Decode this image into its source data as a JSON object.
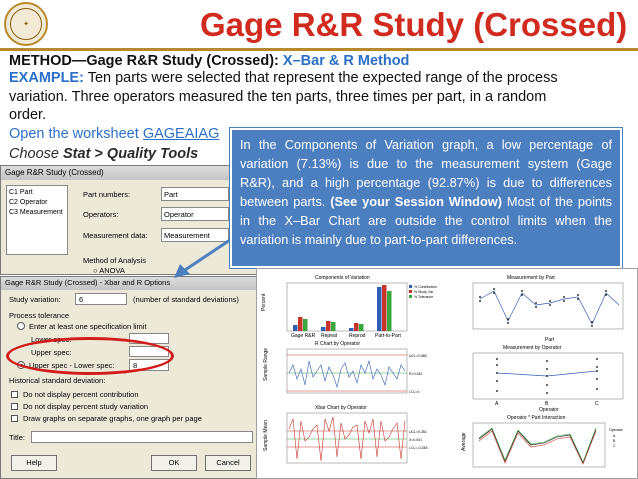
{
  "slide": {
    "title": "Gage R&R Study (Crossed)",
    "method_prefix": "METHOD—Gage R&R Study (Crossed): ",
    "method_value": "X–Bar & R Method",
    "example_label": "EXAMPLE:",
    "example_line1": " Ten parts were selected that represent the expected range of the process",
    "example_line2": "variation. Three operators measured the ten parts, three times per part, in a random",
    "example_line3": "order.",
    "open_prefix": "Open the worksheet ",
    "worksheet": "GAGEAIAG",
    "choose_prefix": "Choose ",
    "choose_path": "Stat > Quality Tools"
  },
  "callout": {
    "text1": "In the Components of Variation graph, a low percentage of variation (7.13%) is due to the measurement system (Gage R&R), and a high percentage (92.87%) is due to differences between parts. ",
    "bold": "(See your Session Window)",
    "text2": " Most of the points in the X–Bar Chart are outside the control limits when the variation is mainly due to part-to-part differences."
  },
  "dialog_main": {
    "title": "Gage R&R Study (Crossed)",
    "columns": [
      "C1   Part",
      "C2   Operator",
      "C3   Measurement"
    ],
    "part_numbers_label": "Part numbers:",
    "part_numbers_value": "Part",
    "operators_label": "Operators:",
    "operators_value": "Operator",
    "measurement_label": "Measurement data:",
    "measurement_value": "Measurement",
    "method_label": "Method of Analysis",
    "anova_label": "ANOVA"
  },
  "dialog_options": {
    "title": "Gage R&R Study (Crossed) - Xbar and R Options",
    "study_variation_label": "Study variation:",
    "study_variation_value": "6",
    "std_dev_note": "(number of standard deviations)",
    "process_tolerance": "Process tolerance",
    "enter_spec": "Enter at least one specification limit",
    "lower_spec": "Lower spec:",
    "upper_spec": "Upper spec:",
    "upper_minus_lower": "Upper spec - Lower spec:",
    "tolerance_value": "8",
    "historical_std": "Historical standard deviation:",
    "cb1": "Do not display percent contribution",
    "cb2": "Do not display percent study variation",
    "cb3": "Draw graphs on separate graphs, one graph per page",
    "title_label": "Title:",
    "help": "Help",
    "ok": "OK",
    "cancel": "Cancel"
  },
  "graphs": {
    "components_title": "Components of Variation",
    "components_ylabel": "Percent",
    "components_categories": [
      "Gage R&R",
      "Repeat",
      "Reprod",
      "Part-to-Part"
    ],
    "legend": [
      "% Contribution",
      "% Study Var",
      "% Tolerance"
    ],
    "by_part_title": "Measurement by Part",
    "by_part_xlabel": "Part",
    "by_part_ticks": [
      "1",
      "2",
      "3",
      "4",
      "5",
      "6",
      "7",
      "8",
      "9",
      "10"
    ],
    "r_chart_title": "R Chart by Operator",
    "r_ylabel": "Sample Range",
    "r_limits": [
      "UCL=0.880",
      "R=0.342",
      "LCL=0"
    ],
    "by_operator_title": "Measurement by Operator",
    "by_operator_xlabel": "Operator",
    "operators": [
      "A",
      "B",
      "C"
    ],
    "xbar_title": "Xbar Chart by Operator",
    "xbar_ylabel": "Sample Mean",
    "xbar_limits": [
      "UCL=0.351",
      "X=0.001",
      "LCL=-0.348"
    ],
    "interaction_title": "Operator * Part Interaction",
    "interaction_ylabel": "Average",
    "interaction_legend_title": "Operator",
    "colors": {
      "contribution": "#2f5fb5",
      "study_var": "#c8342a",
      "tolerance": "#3aa640",
      "title_red": "#d12a1f",
      "accent_blue": "#2b6fc8",
      "callout": "#4c7fbf"
    }
  }
}
